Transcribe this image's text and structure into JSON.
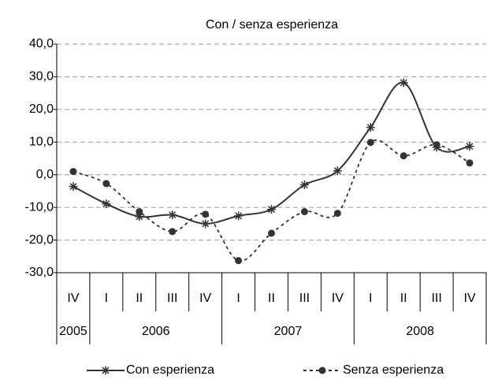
{
  "chart_data": {
    "type": "line",
    "title": "Con / senza esperienza",
    "categories": [
      "IV",
      "I",
      "II",
      "III",
      "IV",
      "I",
      "II",
      "III",
      "IV",
      "I",
      "II",
      "III",
      "IV"
    ],
    "year_categories": [
      "2005",
      "2006",
      null,
      null,
      null,
      "2007",
      null,
      null,
      null,
      "2008",
      null,
      null,
      null
    ],
    "series": [
      {
        "name": "Con esperienza",
        "color": "#333333",
        "marker": "star",
        "dash": "solid",
        "values": [
          -3.6,
          -8.9,
          -12.8,
          -12.3,
          -15.0,
          -12.6,
          -10.6,
          -3.1,
          1.2,
          14.5,
          28.2,
          8.4,
          8.7
        ]
      },
      {
        "name": "Senza esperienza",
        "color": "#333333",
        "marker": "circle",
        "dash": "dashed",
        "values": [
          1.0,
          -2.7,
          -11.3,
          -17.4,
          -12.1,
          -26.3,
          -17.9,
          -11.3,
          -11.8,
          9.9,
          5.8,
          9.2,
          3.6
        ]
      }
    ],
    "ylim": [
      -30,
      40
    ],
    "yticks": [
      {
        "value": -30,
        "label": "-30,0"
      },
      {
        "value": -20,
        "label": "-20,0"
      },
      {
        "value": -10,
        "label": "-10,0"
      },
      {
        "value": 0,
        "label": "0,0"
      },
      {
        "value": 10,
        "label": "10,0"
      },
      {
        "value": 20,
        "label": "20,0"
      },
      {
        "value": 30,
        "label": "30,0"
      },
      {
        "value": 40,
        "label": "40,0"
      }
    ],
    "grid": true,
    "legend": "bottom"
  }
}
